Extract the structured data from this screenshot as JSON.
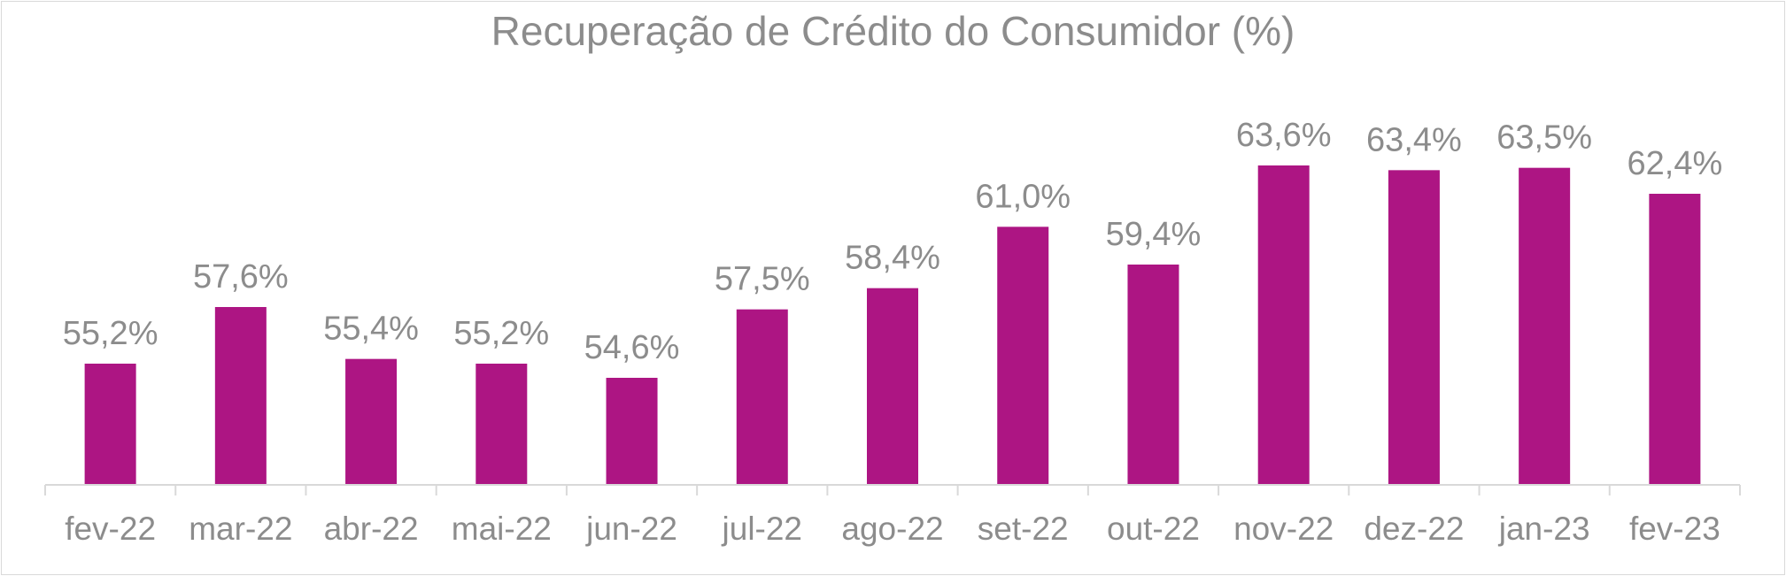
{
  "chart_data": {
    "type": "bar",
    "title": "Recuperação de Crédito do Consumidor (%)",
    "xlabel": "",
    "ylabel": "",
    "categories": [
      "fev-22",
      "mar-22",
      "abr-22",
      "mai-22",
      "jun-22",
      "jul-22",
      "ago-22",
      "set-22",
      "out-22",
      "nov-22",
      "dez-22",
      "jan-23",
      "fev-23"
    ],
    "values": [
      55.2,
      57.6,
      55.4,
      55.2,
      54.6,
      57.5,
      58.4,
      61.0,
      59.4,
      63.6,
      63.4,
      63.5,
      62.4
    ],
    "data_labels": [
      "55,2%",
      "57,6%",
      "55,4%",
      "55,2%",
      "54,6%",
      "57,5%",
      "58,4%",
      "61,0%",
      "59,4%",
      "63,6%",
      "63,4%",
      "63,5%",
      "62,4%"
    ],
    "ylim": [
      50,
      65
    ],
    "grid": false,
    "legend": "none",
    "bar_color": "#AD1583",
    "text_color": "#8C8C8C",
    "axis_color": "#D9D9D9"
  }
}
